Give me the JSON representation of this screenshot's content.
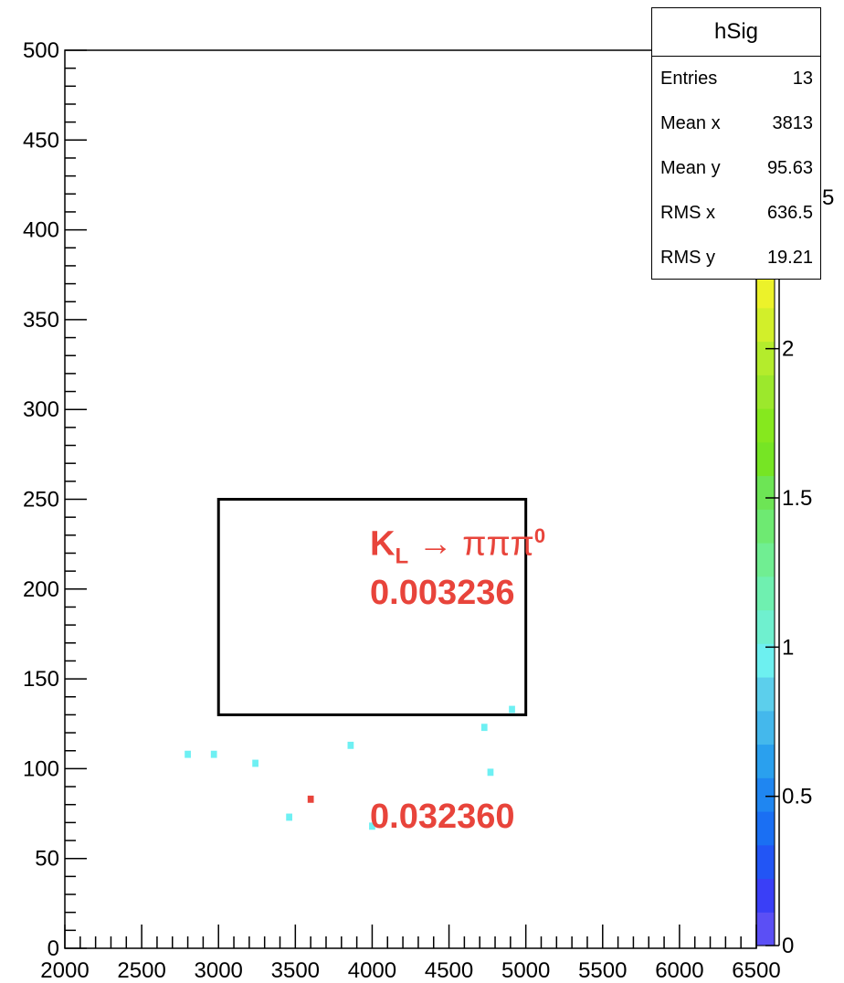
{
  "chart_data": {
    "type": "heatmap",
    "title": "",
    "xlabel": "",
    "ylabel": "",
    "xlim": [
      2000,
      6500
    ],
    "ylim": [
      0,
      500
    ],
    "zlim": [
      0,
      2.25
    ],
    "x_ticks": [
      "2000",
      "2500",
      "3000",
      "3500",
      "4000",
      "4500",
      "5000",
      "5500",
      "6000",
      "6500"
    ],
    "y_ticks": [
      "0",
      "50",
      "100",
      "150",
      "200",
      "250",
      "300",
      "350",
      "400",
      "450",
      "500"
    ],
    "z_ticks": [
      "0",
      "0.5",
      "1",
      "1.5",
      "2"
    ],
    "z_tick_values": [
      0,
      0.5,
      1,
      1.5,
      2
    ],
    "colorbar_partial_label": "5",
    "bin_width_x": 40,
    "bin_width_y": 4,
    "cells": [
      {
        "x": 2800,
        "y": 108,
        "z": 1
      },
      {
        "x": 2970,
        "y": 108,
        "z": 1
      },
      {
        "x": 3240,
        "y": 103,
        "z": 1
      },
      {
        "x": 3460,
        "y": 73,
        "z": 1
      },
      {
        "x": 3600,
        "y": 83,
        "z": 2
      },
      {
        "x": 3860,
        "y": 113,
        "z": 1
      },
      {
        "x": 4000,
        "y": 68,
        "z": 1
      },
      {
        "x": 4730,
        "y": 123,
        "z": 1
      },
      {
        "x": 4770,
        "y": 98,
        "z": 1
      },
      {
        "x": 4910,
        "y": 133,
        "z": 1
      }
    ],
    "region_box": {
      "x0": 3000,
      "x1": 5000,
      "y0": 130,
      "y1": 250
    }
  },
  "stats": {
    "title": "hSig",
    "rows": [
      {
        "label": "Entries",
        "value": "13"
      },
      {
        "label": "Mean x",
        "value": "3813"
      },
      {
        "label": "Mean y",
        "value": "95.63"
      },
      {
        "label": "RMS x",
        "value": "636.5"
      },
      {
        "label": "RMS y",
        "value": "19.21"
      }
    ]
  },
  "annotations": {
    "decay_k": "K",
    "decay_sub": "L",
    "decay_rest": " → πππ",
    "decay_sup": "0",
    "value_upper": "0.003236",
    "value_lower": "0.032360"
  },
  "colors": {
    "annotation": "#e8443b",
    "low_cell": "#6ef0f3",
    "high_cell": "#e8443b",
    "palette": [
      "#5b4ff5",
      "#3a3ff7",
      "#2255f5",
      "#1a6ff3",
      "#1f86f1",
      "#2aa0ee",
      "#44b8ec",
      "#5ccfec",
      "#6df0f0",
      "#6ff0cf",
      "#6ff0b0",
      "#70ee92",
      "#6eea72",
      "#6de555",
      "#76e524",
      "#86e81e",
      "#9ce82c",
      "#b4ec2c",
      "#d2ef2a",
      "#ecf22a"
    ]
  }
}
